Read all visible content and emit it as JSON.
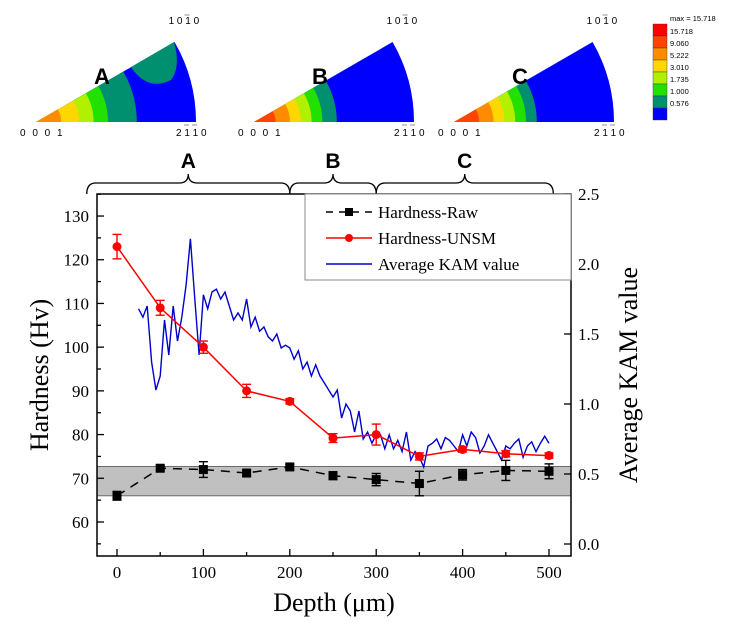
{
  "chart_data": {
    "type": "line",
    "title": "",
    "xlabel": "Depth (μm)",
    "ylabel": "Hardness (Hv)",
    "y2label": "Average KAM value",
    "xlim": [
      -30,
      520
    ],
    "ylim": [
      52,
      135
    ],
    "y2lim": [
      0.0,
      2.5
    ],
    "x_ticks": [
      0,
      100,
      200,
      300,
      400,
      500
    ],
    "x_tick_labels": [
      "0",
      "100",
      "200",
      "300",
      "400",
      "500"
    ],
    "y_ticks": [
      60,
      70,
      80,
      90,
      100,
      110,
      120,
      130
    ],
    "y_tick_labels": [
      "60",
      "70",
      "80",
      "90",
      "100",
      "110",
      "120",
      "130"
    ],
    "y2_ticks": [
      0.0,
      0.5,
      1.0,
      1.5,
      2.0,
      2.5
    ],
    "y2_tick_labels": [
      "0.0",
      "0.5",
      "1.0",
      "1.5",
      "2.0",
      "2.5"
    ],
    "grid": false,
    "legend_position": "top-right",
    "shaded_band": {
      "y_from": 66,
      "y_to": 72.7,
      "color": "#c0c0c0"
    },
    "series": [
      {
        "name": "Hardness-Raw",
        "axis": "left",
        "style": "dashed",
        "marker": "square",
        "color": "#000000",
        "x": [
          0,
          50,
          100,
          150,
          200,
          250,
          300,
          350,
          400,
          450,
          500
        ],
        "values": [
          66,
          72.3,
          72,
          71.2,
          72.6,
          70.6,
          69.7,
          68.8,
          70.8,
          71.8,
          71.6
        ],
        "errors": [
          1.0,
          0.6,
          1.8,
          0.6,
          0.6,
          0.9,
          1.4,
          2.8,
          1.2,
          2.3,
          1.7
        ]
      },
      {
        "name": "Hardness-UNSM",
        "axis": "left",
        "style": "solid",
        "marker": "circle",
        "color": "#ff0000",
        "x": [
          0,
          50,
          100,
          150,
          200,
          250,
          300,
          350,
          400,
          450,
          500
        ],
        "values": [
          123,
          109,
          100,
          90,
          87.6,
          79.2,
          80,
          75,
          76.6,
          75.6,
          75.2
        ],
        "errors": [
          2.8,
          1.7,
          1.4,
          1.5,
          0.6,
          1.0,
          2.4,
          0.8,
          0.6,
          0.7,
          0.6
        ]
      },
      {
        "name": "Average KAM value",
        "axis": "right",
        "style": "solid",
        "marker": "none",
        "color": "#0000cc",
        "x": [
          25,
          30,
          35,
          40,
          45,
          50,
          55,
          60,
          65,
          70,
          75,
          80,
          85,
          90,
          95,
          100,
          105,
          110,
          115,
          120,
          125,
          130,
          135,
          140,
          145,
          150,
          155,
          160,
          165,
          170,
          175,
          180,
          185,
          190,
          195,
          200,
          205,
          210,
          215,
          220,
          225,
          230,
          235,
          240,
          245,
          250,
          255,
          260,
          265,
          270,
          275,
          280,
          285,
          290,
          295,
          300,
          305,
          310,
          315,
          320,
          325,
          330,
          335,
          340,
          345,
          350,
          355,
          360,
          365,
          370,
          375,
          380,
          385,
          390,
          395,
          400,
          405,
          410,
          415,
          420,
          425,
          430,
          435,
          440,
          445,
          450,
          455,
          460,
          465,
          470,
          475,
          480,
          485,
          490,
          495,
          500
        ],
        "values": [
          1.68,
          1.62,
          1.7,
          1.3,
          1.1,
          1.2,
          1.6,
          1.35,
          1.7,
          1.45,
          1.62,
          1.85,
          2.18,
          1.75,
          1.35,
          1.78,
          1.68,
          1.8,
          1.82,
          1.75,
          1.8,
          1.7,
          1.6,
          1.65,
          1.6,
          1.75,
          1.55,
          1.62,
          1.52,
          1.55,
          1.48,
          1.45,
          1.5,
          1.4,
          1.42,
          1.4,
          1.32,
          1.38,
          1.25,
          1.3,
          1.2,
          1.28,
          1.2,
          1.15,
          1.1,
          1.05,
          1.1,
          0.9,
          1.0,
          0.95,
          0.8,
          0.95,
          0.75,
          0.8,
          0.72,
          0.78,
          0.78,
          0.68,
          0.78,
          0.68,
          0.74,
          0.66,
          0.8,
          0.6,
          0.66,
          0.62,
          0.55,
          0.7,
          0.72,
          0.75,
          0.68,
          0.76,
          0.74,
          0.7,
          0.66,
          0.78,
          0.7,
          0.8,
          0.76,
          0.65,
          0.7,
          0.78,
          0.72,
          0.66,
          0.6,
          0.7,
          0.68,
          0.72,
          0.75,
          0.62,
          0.7,
          0.73,
          0.66,
          0.72,
          0.77,
          0.72
        ]
      }
    ],
    "region_brackets": [
      {
        "label": "A",
        "from": -35,
        "to": 200
      },
      {
        "label": "B",
        "from": 200,
        "to": 300
      },
      {
        "label": "C",
        "from": 300,
        "to": 505
      }
    ],
    "inset_pole_figures": [
      {
        "label": "A",
        "corner_labels": [
          "0001",
          "2̅1̅10",
          "101̅0"
        ]
      },
      {
        "label": "B",
        "corner_labels": [
          "0001",
          "2̅1̅10",
          "101̅0"
        ]
      },
      {
        "label": "C",
        "corner_labels": [
          "0001",
          "2̅1̅10",
          "101̅0"
        ]
      }
    ],
    "colorbar": {
      "title": "max = 15.718",
      "levels": [
        "15.718",
        "9.060",
        "5.222",
        "3.010",
        "1.735",
        "1.000",
        "0.576"
      ],
      "colors": [
        "#ff0000",
        "#ff4400",
        "#ff8c00",
        "#ffd700",
        "#b0f000",
        "#22e000",
        "#009070",
        "#0000ff"
      ]
    }
  },
  "pole_figures": {
    "bottom_left": "0 0 0 1",
    "bottom_right_main": "2 1 1 0",
    "top_right_main": "1 0 1 0"
  }
}
